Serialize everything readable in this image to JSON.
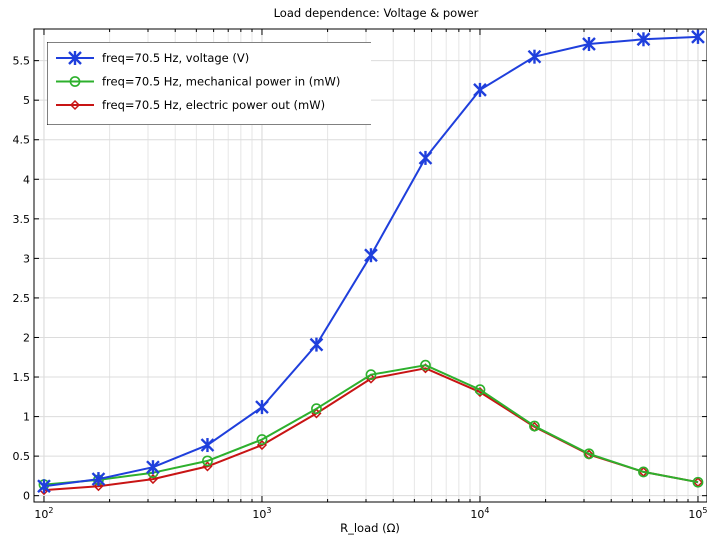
{
  "chart_data": {
    "type": "line",
    "title": "Load dependence: Voltage & power",
    "xlabel": "R_load (Ω)",
    "ylabel": "",
    "xscale": "log",
    "xlim": [
      90,
      110000
    ],
    "ylim": [
      -0.08,
      5.9
    ],
    "grid": true,
    "legend_position": "top-left",
    "x": [
      100,
      177.8,
      316.2,
      562.3,
      1000,
      1778,
      3162,
      5623,
      10000,
      17783,
      31623,
      56234,
      100000
    ],
    "x_tick_values": [
      100,
      1000,
      10000,
      100000
    ],
    "x_tick_labels": [
      {
        "base": "10",
        "exp": "2"
      },
      {
        "base": "10",
        "exp": "3"
      },
      {
        "base": "10",
        "exp": "4"
      },
      {
        "base": "10",
        "exp": "5"
      }
    ],
    "y_tick_values": [
      0,
      0.5,
      1,
      1.5,
      2,
      2.5,
      3,
      3.5,
      4,
      4.5,
      5,
      5.5
    ],
    "y_tick_labels": [
      "0",
      "0.5",
      "1",
      "1.5",
      "2",
      "2.5",
      "3",
      "3.5",
      "4",
      "4.5",
      "5",
      "5.5"
    ],
    "series": [
      {
        "name": "freq=70.5 Hz, voltage (V)",
        "color": "#1f3fdc",
        "marker": "asterisk",
        "values": [
          0.12,
          0.21,
          0.36,
          0.64,
          1.12,
          1.91,
          3.04,
          4.27,
          5.13,
          5.55,
          5.71,
          5.77,
          5.8
        ]
      },
      {
        "name": "freq=70.5 Hz, mechanical power in (mW)",
        "color": "#2db02d",
        "marker": "circle",
        "values": [
          0.14,
          0.2,
          0.29,
          0.44,
          0.71,
          1.1,
          1.53,
          1.65,
          1.34,
          0.88,
          0.53,
          0.3,
          0.17
        ]
      },
      {
        "name": "freq=70.5 Hz, electric power out (mW)",
        "color": "#c81414",
        "marker": "diamond",
        "values": [
          0.07,
          0.12,
          0.21,
          0.37,
          0.64,
          1.04,
          1.48,
          1.61,
          1.31,
          0.87,
          0.52,
          0.3,
          0.17
        ]
      }
    ]
  }
}
